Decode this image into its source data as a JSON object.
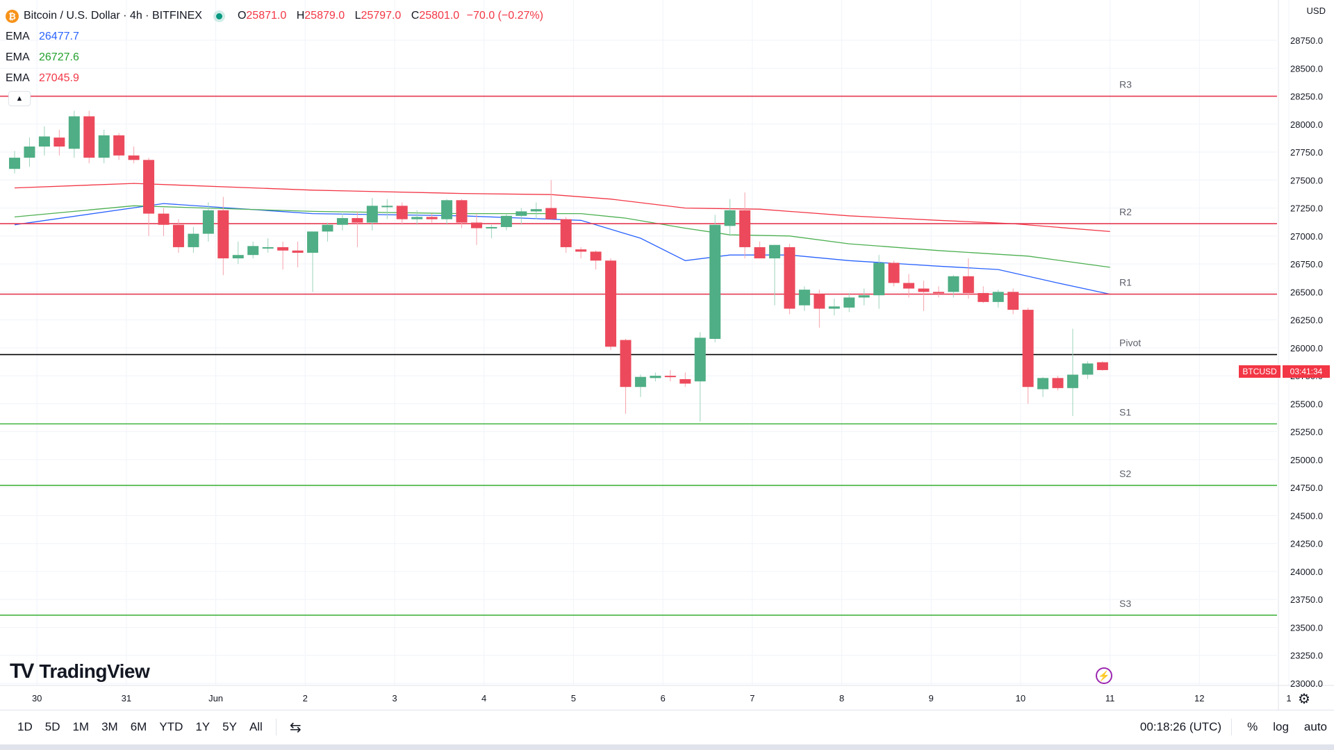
{
  "header": {
    "coin_symbol": "₿",
    "symbol_title": "Bitcoin / U.S. Dollar · 4h · BITFINEX",
    "ohlc": {
      "open_label": "O",
      "open": "25871.0",
      "high_label": "H",
      "high": "25879.0",
      "low_label": "L",
      "low": "25797.0",
      "close_label": "C",
      "close": "25801.0",
      "change": "−70.0 (−0.27%)"
    },
    "market_status_color": "#089981"
  },
  "indicators": [
    {
      "name": "EMA",
      "value": "26477.7",
      "color": "#2962ff"
    },
    {
      "name": "EMA",
      "value": "26727.6",
      "color": "#4caf50"
    },
    {
      "name": "EMA",
      "value": "27045.9",
      "color": "#f23645"
    }
  ],
  "collapse_icon": "▲",
  "currency": "USD",
  "brand": {
    "logo_mark": "TV",
    "name": "TradingView"
  },
  "price_tag": {
    "symbol": "BTCUSD",
    "countdown": "03:41:34"
  },
  "bottom_bar": {
    "ranges": [
      "1D",
      "5D",
      "1M",
      "3M",
      "6M",
      "YTD",
      "1Y",
      "5Y",
      "All"
    ],
    "calendar_icon": "⇆",
    "clock": "00:18:26 (UTC)",
    "percent": "%",
    "log": "log",
    "auto": "auto"
  },
  "settings_icon": "⚙",
  "chart_data": {
    "type": "candlestick",
    "title": "Bitcoin / U.S. Dollar · 4h · BITFINEX",
    "ylim": [
      23000,
      29000
    ],
    "y_ticks": [
      23000,
      23250,
      23500,
      23750,
      24000,
      24250,
      24500,
      24750,
      25000,
      25250,
      25500,
      25750,
      26000,
      26250,
      26500,
      26750,
      27000,
      27250,
      27500,
      27750,
      28000,
      28250,
      28500,
      28750
    ],
    "x_ticks": [
      {
        "label": "30",
        "index": 1.5
      },
      {
        "label": "31",
        "index": 7.5
      },
      {
        "label": "Jun",
        "index": 13.5
      },
      {
        "label": "2",
        "index": 19.5
      },
      {
        "label": "3",
        "index": 25.5
      },
      {
        "label": "4",
        "index": 31.5
      },
      {
        "label": "5",
        "index": 37.5
      },
      {
        "label": "6",
        "index": 43.5
      },
      {
        "label": "7",
        "index": 49.5
      },
      {
        "label": "8",
        "index": 55.5
      },
      {
        "label": "9",
        "index": 61.5
      },
      {
        "label": "10",
        "index": 67.5
      },
      {
        "label": "11",
        "index": 73.5
      },
      {
        "label": "12",
        "index": 79.5
      },
      {
        "label": "1",
        "index": 85.5
      }
    ],
    "last_price": 25801,
    "levels": [
      {
        "name": "R3",
        "value": 28250,
        "color": "#e53950"
      },
      {
        "name": "R2",
        "value": 27110,
        "color": "#e53950"
      },
      {
        "name": "R1",
        "value": 26480,
        "color": "#e53950"
      },
      {
        "name": "Pivot",
        "value": 25940,
        "color": "#000000"
      },
      {
        "name": "S1",
        "value": 25320,
        "color": "#43b33e"
      },
      {
        "name": "S2",
        "value": 24770,
        "color": "#43b33e"
      },
      {
        "name": "S3",
        "value": 23610,
        "color": "#43b33e"
      }
    ],
    "candles": [
      [
        27600,
        27760,
        27560,
        27700
      ],
      [
        27700,
        27880,
        27620,
        27800
      ],
      [
        27800,
        27980,
        27720,
        27890
      ],
      [
        27880,
        27950,
        27720,
        27800
      ],
      [
        27780,
        28120,
        27700,
        28070
      ],
      [
        28070,
        28120,
        27650,
        27700
      ],
      [
        27700,
        27950,
        27650,
        27900
      ],
      [
        27900,
        27920,
        27680,
        27720
      ],
      [
        27720,
        27800,
        27650,
        27680
      ],
      [
        27680,
        27700,
        27000,
        27200
      ],
      [
        27200,
        27250,
        27000,
        27100
      ],
      [
        27100,
        27150,
        26850,
        26900
      ],
      [
        26900,
        27080,
        26850,
        27020
      ],
      [
        27020,
        27300,
        26950,
        27230
      ],
      [
        27230,
        27350,
        26650,
        26800
      ],
      [
        26800,
        26950,
        26750,
        26830
      ],
      [
        26830,
        26950,
        26800,
        26910
      ],
      [
        26900,
        26980,
        26850,
        26900
      ],
      [
        26900,
        26950,
        26700,
        26870
      ],
      [
        26870,
        26950,
        26720,
        26850
      ],
      [
        26850,
        27020,
        26500,
        27040
      ],
      [
        27040,
        27120,
        26950,
        27100
      ],
      [
        27100,
        27200,
        27050,
        27160
      ],
      [
        27160,
        27220,
        26900,
        27120
      ],
      [
        27120,
        27340,
        27050,
        27270
      ],
      [
        27270,
        27330,
        27150,
        27270
      ],
      [
        27270,
        27300,
        27100,
        27150
      ],
      [
        27150,
        27230,
        27100,
        27170
      ],
      [
        27170,
        27200,
        27120,
        27150
      ],
      [
        27150,
        27330,
        27100,
        27320
      ],
      [
        27320,
        27330,
        27070,
        27120
      ],
      [
        27120,
        27200,
        26920,
        27070
      ],
      [
        27070,
        27100,
        26980,
        27080
      ],
      [
        27080,
        27200,
        27050,
        27180
      ],
      [
        27180,
        27250,
        27100,
        27220
      ],
      [
        27220,
        27300,
        27150,
        27240
      ],
      [
        27250,
        27500,
        27150,
        27150
      ],
      [
        27150,
        27170,
        26850,
        26900
      ],
      [
        26880,
        26900,
        26800,
        26860
      ],
      [
        26860,
        26870,
        26700,
        26780
      ],
      [
        26780,
        26800,
        25980,
        26010
      ],
      [
        26070,
        26080,
        25410,
        25650
      ],
      [
        25650,
        25760,
        25560,
        25740
      ],
      [
        25730,
        25780,
        25700,
        25750
      ],
      [
        25750,
        25800,
        25700,
        25740
      ],
      [
        25720,
        25780,
        25650,
        25680
      ],
      [
        25700,
        26140,
        25340,
        26090
      ],
      [
        26080,
        27190,
        26050,
        27100
      ],
      [
        27090,
        27330,
        27000,
        27230
      ],
      [
        27230,
        27390,
        26800,
        26900
      ],
      [
        26900,
        26950,
        26800,
        26800
      ],
      [
        26800,
        26920,
        26380,
        26920
      ],
      [
        26900,
        26930,
        26300,
        26350
      ],
      [
        26380,
        26550,
        26330,
        26520
      ],
      [
        26480,
        26520,
        26180,
        26350
      ],
      [
        26350,
        26440,
        26290,
        26370
      ],
      [
        26360,
        26490,
        26320,
        26450
      ],
      [
        26450,
        26530,
        26380,
        26470
      ],
      [
        26470,
        26830,
        26350,
        26760
      ],
      [
        26760,
        26780,
        26550,
        26580
      ],
      [
        26580,
        26660,
        26450,
        26530
      ],
      [
        26530,
        26600,
        26330,
        26500
      ],
      [
        26500,
        26550,
        26450,
        26490
      ],
      [
        26500,
        26650,
        26450,
        26640
      ],
      [
        26640,
        26800,
        26440,
        26490
      ],
      [
        26490,
        26550,
        26400,
        26410
      ],
      [
        26410,
        26520,
        26360,
        26500
      ],
      [
        26500,
        26530,
        26300,
        26340
      ],
      [
        26340,
        26360,
        25500,
        25650
      ],
      [
        25630,
        25740,
        25560,
        25730
      ],
      [
        25730,
        25750,
        25620,
        25640
      ],
      [
        25640,
        26170,
        25390,
        25760
      ],
      [
        25760,
        25880,
        25720,
        25860
      ],
      [
        25871,
        25879,
        25797,
        25801
      ]
    ],
    "ema_series": [
      {
        "name": "EMA",
        "color": "#2962ff",
        "points": [
          [
            0,
            27100
          ],
          [
            10,
            27290
          ],
          [
            20,
            27200
          ],
          [
            30,
            27180
          ],
          [
            38,
            27140
          ],
          [
            42,
            26980
          ],
          [
            45,
            26780
          ],
          [
            48,
            26830
          ],
          [
            52,
            26830
          ],
          [
            56,
            26780
          ],
          [
            62,
            26730
          ],
          [
            66,
            26700
          ],
          [
            70,
            26580
          ],
          [
            73.5,
            26480
          ]
        ]
      },
      {
        "name": "EMA",
        "color": "#4caf50",
        "points": [
          [
            0,
            27170
          ],
          [
            8,
            27270
          ],
          [
            20,
            27220
          ],
          [
            30,
            27200
          ],
          [
            38,
            27200
          ],
          [
            41,
            27160
          ],
          [
            45,
            27070
          ],
          [
            48,
            27010
          ],
          [
            52,
            27000
          ],
          [
            56,
            26930
          ],
          [
            62,
            26870
          ],
          [
            68,
            26820
          ],
          [
            73.5,
            26720
          ]
        ]
      },
      {
        "name": "EMA",
        "color": "#f23645",
        "points": [
          [
            0,
            27430
          ],
          [
            8,
            27470
          ],
          [
            20,
            27410
          ],
          [
            30,
            27380
          ],
          [
            36,
            27370
          ],
          [
            40,
            27330
          ],
          [
            45,
            27250
          ],
          [
            50,
            27240
          ],
          [
            56,
            27180
          ],
          [
            62,
            27140
          ],
          [
            67,
            27110
          ],
          [
            73.5,
            27040
          ]
        ]
      }
    ]
  }
}
